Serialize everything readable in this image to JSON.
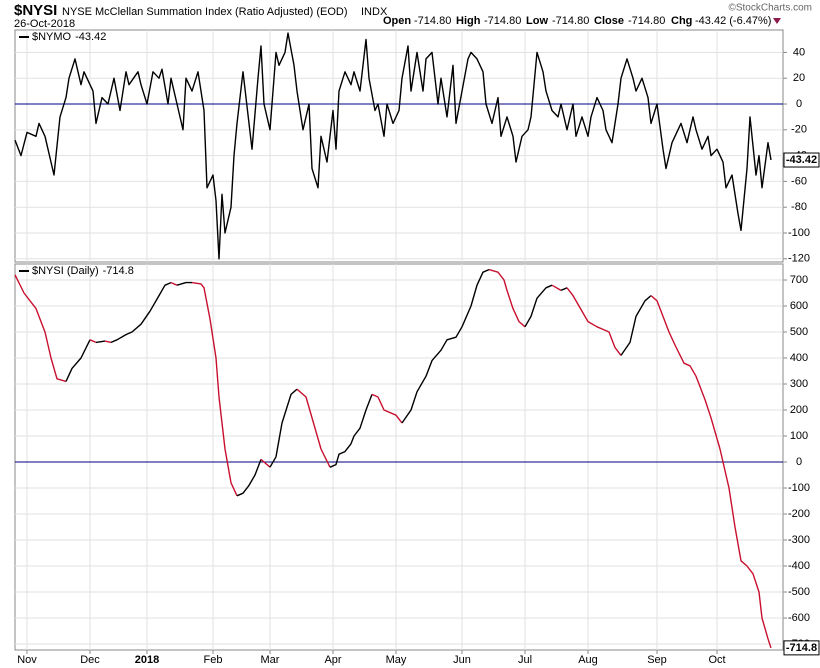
{
  "header": {
    "symbol": "$NYSI",
    "name": "NYSE McClellan Summation Index (Ratio Adjusted) (EOD)",
    "exchange": "INDX",
    "date": "26-Oct-2018",
    "open_label": "Open",
    "open": "-714.80",
    "high_label": "High",
    "high": "-714.80",
    "low_label": "Low",
    "low": "-714.80",
    "close_label": "Close",
    "close": "-714.80",
    "chg_label": "Chg",
    "chg": "-43.42 (-6.47%)",
    "copyright": "©StockCharts.com"
  },
  "chart_data": [
    {
      "type": "line",
      "grid": true,
      "hline": 0,
      "hline_color": "#000080",
      "xlim": [
        0,
        256
      ],
      "xticks": [
        {
          "value": 4,
          "label": "Nov"
        },
        {
          "value": 25,
          "label": "Dec"
        },
        {
          "value": 44,
          "label": "2018"
        },
        {
          "value": 66,
          "label": "Feb"
        },
        {
          "value": 85,
          "label": "Mar"
        },
        {
          "value": 106,
          "label": "Apr"
        },
        {
          "value": 127,
          "label": "May"
        },
        {
          "value": 149,
          "label": "Jun"
        },
        {
          "value": 170,
          "label": "Jul"
        },
        {
          "value": 191,
          "label": "Aug"
        },
        {
          "value": 214,
          "label": "Sep"
        },
        {
          "value": 234,
          "label": "Oct"
        }
      ],
      "ylim": [
        -122.5,
        57.4
      ],
      "yticks": [
        40,
        20,
        0,
        -20,
        -40,
        -60,
        -80,
        -100,
        -120
      ],
      "series": [
        {
          "name": "$NYMO",
          "color": "#000000",
          "x": [
            0,
            2,
            4,
            7,
            8,
            10,
            13,
            15,
            17,
            18,
            20,
            22,
            23,
            26,
            27,
            29,
            31,
            33,
            35,
            37,
            38,
            41,
            42,
            44,
            46,
            48,
            49,
            51,
            52,
            54,
            56,
            57,
            59,
            61,
            63,
            64,
            66,
            67,
            68,
            69,
            70,
            72,
            73,
            74,
            76,
            78,
            79,
            81,
            82,
            83,
            85,
            87,
            88,
            90,
            91,
            93,
            94,
            96,
            98,
            99,
            101,
            102,
            104,
            106,
            107,
            108,
            110,
            112,
            113,
            115,
            117,
            118,
            120,
            121,
            123,
            124,
            126,
            128,
            129,
            131,
            132,
            134,
            136,
            137,
            139,
            141,
            142,
            144,
            146,
            147,
            149,
            151,
            152,
            154,
            156,
            157,
            159,
            161,
            162,
            164,
            166,
            167,
            169,
            171,
            172,
            174,
            176,
            177,
            179,
            181,
            182,
            184,
            186,
            187,
            189,
            191,
            192,
            194,
            196,
            197,
            199,
            201,
            202,
            204,
            206,
            207,
            209,
            211,
            212,
            214,
            216,
            217,
            219,
            221,
            222,
            224,
            226,
            227,
            229,
            231,
            232,
            234,
            236,
            237,
            239,
            241,
            242,
            244,
            245,
            247,
            248,
            249,
            251,
            252
          ],
          "values": [
            -28,
            -40,
            -22,
            -25,
            -15,
            -25,
            -55,
            -10,
            5,
            20,
            35,
            15,
            25,
            10,
            -15,
            5,
            0,
            20,
            -5,
            25,
            15,
            25,
            15,
            0,
            25,
            20,
            27,
            0,
            20,
            0,
            -20,
            20,
            10,
            25,
            -5,
            -65,
            -55,
            -75,
            -120,
            -70,
            -100,
            -80,
            -40,
            -15,
            25,
            -15,
            -35,
            20,
            45,
            0,
            -20,
            40,
            30,
            40,
            55,
            30,
            10,
            -20,
            0,
            -50,
            -65,
            -25,
            -45,
            -5,
            -35,
            10,
            25,
            15,
            25,
            10,
            50,
            20,
            -5,
            0,
            -25,
            0,
            -15,
            -5,
            20,
            45,
            10,
            40,
            10,
            35,
            40,
            0,
            20,
            -10,
            30,
            -15,
            10,
            35,
            40,
            35,
            25,
            0,
            -15,
            5,
            -25,
            -10,
            -25,
            -45,
            -25,
            -20,
            -10,
            40,
            25,
            10,
            -5,
            -10,
            0,
            -20,
            0,
            -25,
            -10,
            -25,
            -10,
            5,
            -5,
            -20,
            -30,
            0,
            20,
            35,
            20,
            10,
            20,
            5,
            -15,
            0,
            -35,
            -50,
            -30,
            -20,
            -15,
            -30,
            -10,
            -20,
            -35,
            -25,
            -40,
            -35,
            -45,
            -65,
            -55,
            -85,
            -98,
            -50,
            -10,
            -55,
            -40,
            -65,
            -30,
            -43.42
          ]
        }
      ]
    },
    {
      "type": "line",
      "grid": true,
      "hline": 0,
      "hline_color": "#000080",
      "xlim": [
        0,
        256
      ],
      "xticks": [
        {
          "value": 4,
          "label": "Nov"
        },
        {
          "value": 25,
          "label": "Dec"
        },
        {
          "value": 44,
          "label": "2018"
        },
        {
          "value": 66,
          "label": "Feb"
        },
        {
          "value": 85,
          "label": "Mar"
        },
        {
          "value": 106,
          "label": "Apr"
        },
        {
          "value": 127,
          "label": "May"
        },
        {
          "value": 149,
          "label": "Jun"
        },
        {
          "value": 170,
          "label": "Jul"
        },
        {
          "value": 191,
          "label": "Aug"
        },
        {
          "value": 214,
          "label": "Sep"
        },
        {
          "value": 234,
          "label": "Oct"
        }
      ],
      "ylim": [
        -723,
        761.5
      ],
      "yticks": [
        700,
        600,
        500,
        400,
        300,
        200,
        100,
        0,
        -100,
        -200,
        -300,
        -400,
        -500,
        -600,
        -700
      ],
      "series": [
        {
          "name": "$NYSI (Daily)",
          "color": "#000000",
          "down_color": "#c8102e",
          "x": [
            0,
            3,
            7,
            10,
            12,
            14,
            17,
            19,
            22,
            25,
            27,
            30,
            32,
            34,
            37,
            39,
            42,
            45,
            48,
            50,
            52,
            54,
            57,
            59,
            62,
            63,
            65,
            67,
            68,
            70,
            72,
            74,
            76,
            78,
            80,
            82,
            83,
            85,
            87,
            89,
            92,
            94,
            97,
            100,
            102,
            105,
            107,
            108,
            110,
            112,
            113,
            115,
            117,
            119,
            121,
            123,
            127,
            129,
            132,
            134,
            137,
            139,
            142,
            144,
            147,
            149,
            152,
            154,
            156,
            158,
            161,
            163,
            164,
            166,
            168,
            170,
            172,
            174,
            177,
            179,
            182,
            184,
            186,
            188,
            191,
            194,
            196,
            198,
            200,
            202,
            205,
            207,
            210,
            212,
            214,
            216,
            218,
            220,
            223,
            225,
            227,
            230,
            232,
            235,
            238,
            240,
            242,
            244,
            246,
            248,
            249,
            251,
            252
          ],
          "values": [
            720,
            650,
            590,
            500,
            400,
            320,
            310,
            360,
            400,
            470,
            460,
            465,
            460,
            470,
            490,
            500,
            530,
            580,
            640,
            680,
            690,
            680,
            690,
            690,
            685,
            670,
            550,
            400,
            250,
            50,
            -80,
            -130,
            -120,
            -90,
            -50,
            10,
            0,
            -20,
            20,
            150,
            260,
            280,
            250,
            130,
            50,
            -20,
            -10,
            30,
            40,
            70,
            100,
            130,
            200,
            260,
            250,
            200,
            180,
            150,
            200,
            270,
            330,
            390,
            430,
            470,
            480,
            520,
            600,
            680,
            730,
            740,
            730,
            700,
            660,
            590,
            540,
            520,
            560,
            630,
            670,
            680,
            660,
            670,
            640,
            600,
            540,
            520,
            510,
            500,
            440,
            410,
            460,
            560,
            620,
            640,
            620,
            560,
            500,
            450,
            380,
            370,
            330,
            240,
            170,
            50,
            -100,
            -250,
            -380,
            -400,
            -430,
            -500,
            -600,
            -680,
            -714.8
          ]
        }
      ]
    }
  ]
}
